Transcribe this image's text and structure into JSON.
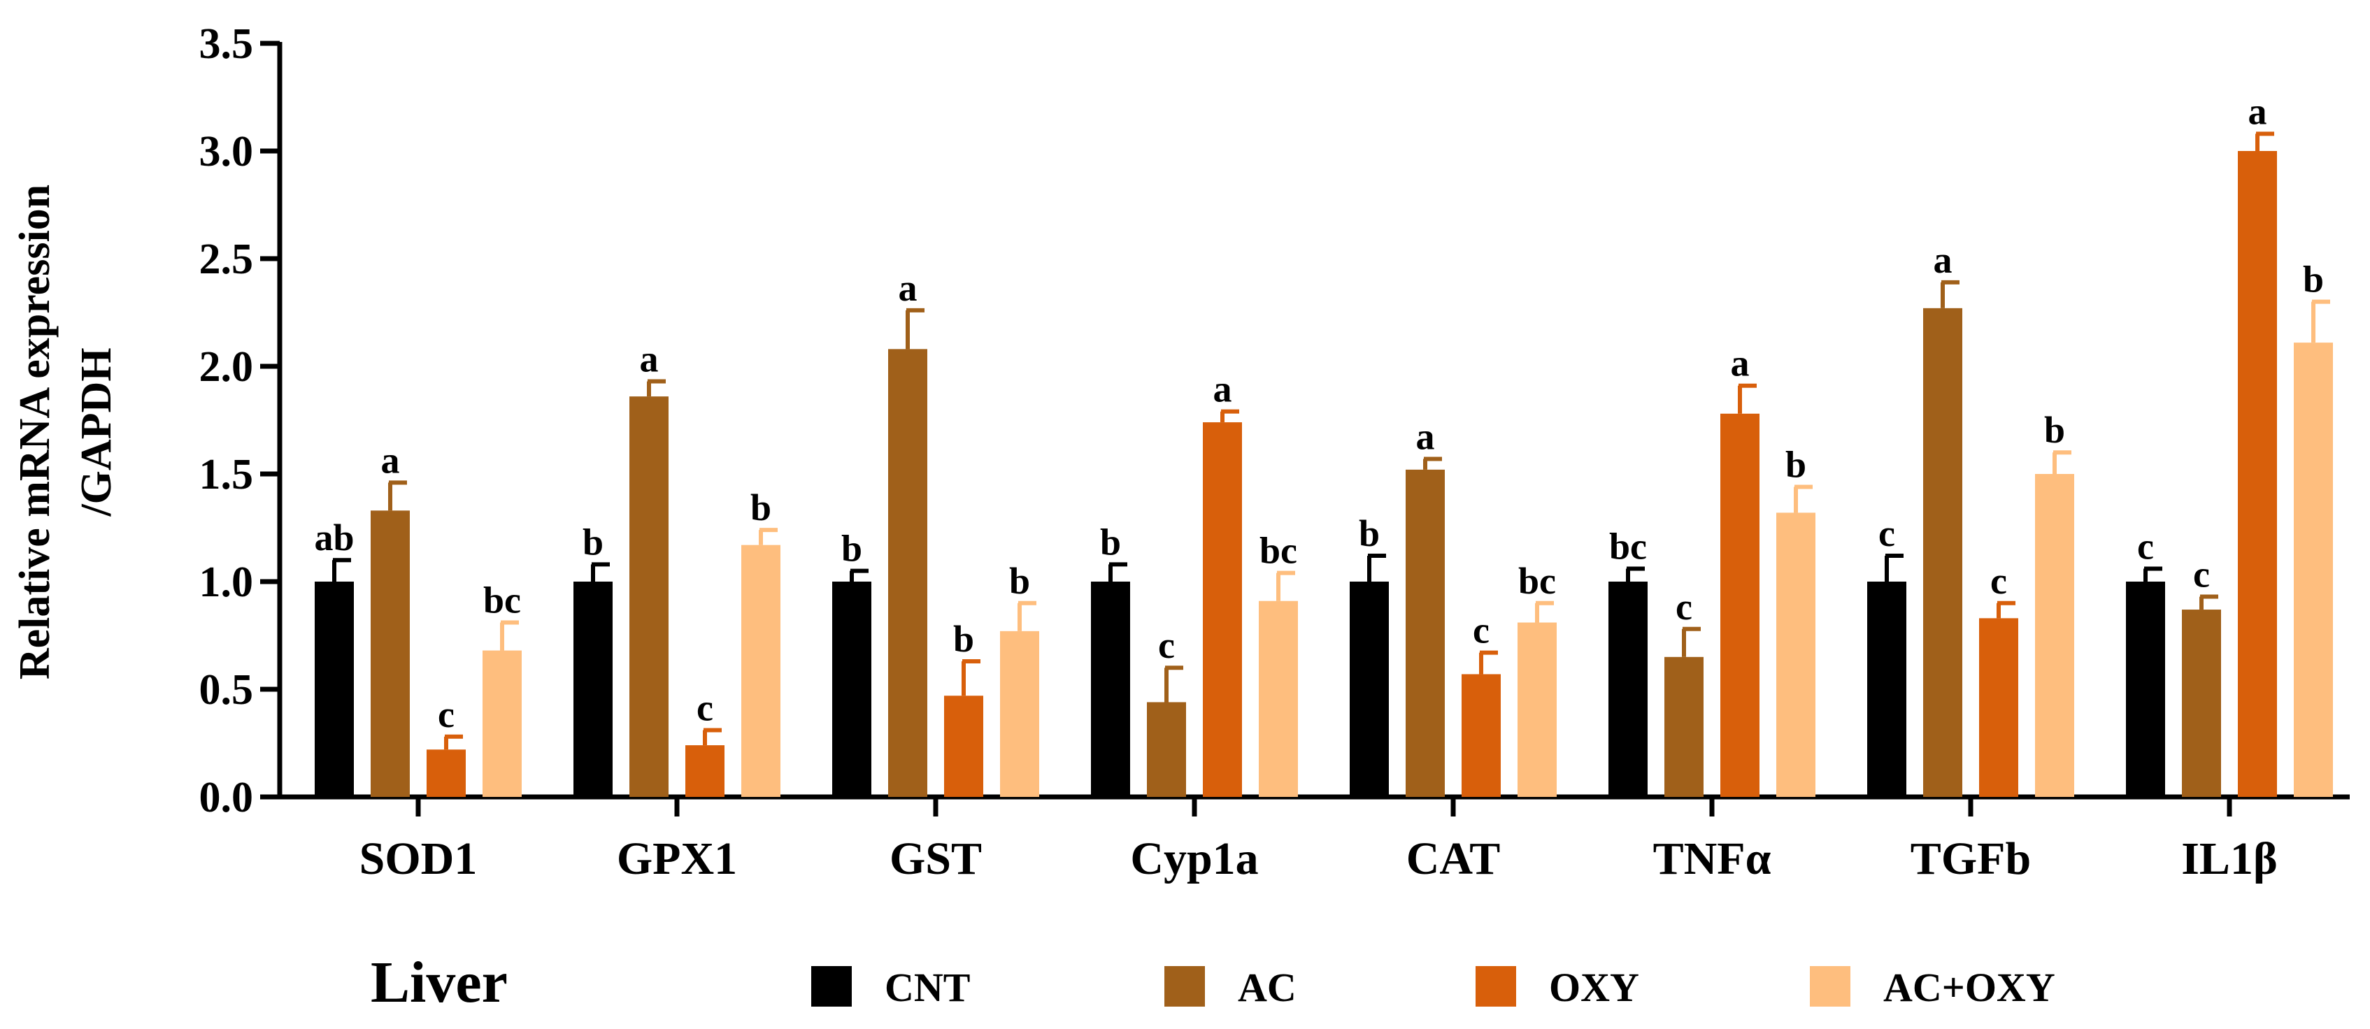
{
  "chart_data": {
    "type": "bar",
    "title": "Liver",
    "ylabel_line1": "Relative mRNA expression",
    "ylabel_line2": "/GAPDH",
    "xlabel": "",
    "ylim": [
      0,
      3.5
    ],
    "yticks": [
      "0.0",
      "0.5",
      "1.0",
      "1.5",
      "2.0",
      "2.5",
      "3.0",
      "3.5"
    ],
    "ytick_values": [
      0,
      0.5,
      1.0,
      1.5,
      2.0,
      2.5,
      3.0,
      3.5
    ],
    "categories": [
      "SOD1",
      "GPX1",
      "GST",
      "Cyp1a",
      "CAT",
      "TNFα",
      "TGFb",
      "IL1β"
    ],
    "legend_position": "bottom",
    "series": [
      {
        "name": "CNT",
        "color": "#000000",
        "values": [
          1.0,
          1.0,
          1.0,
          1.0,
          1.0,
          1.0,
          1.0,
          1.0
        ],
        "errors": [
          0.1,
          0.08,
          0.05,
          0.08,
          0.12,
          0.06,
          0.12,
          0.06
        ],
        "sig": [
          "ab",
          "b",
          "b",
          "b",
          "b",
          "bc",
          "c",
          "c"
        ]
      },
      {
        "name": "AC",
        "color": "#A0601A",
        "values": [
          1.33,
          1.86,
          2.08,
          0.44,
          1.52,
          0.65,
          2.27,
          0.87
        ],
        "errors": [
          0.13,
          0.07,
          0.18,
          0.16,
          0.05,
          0.13,
          0.12,
          0.06
        ],
        "sig": [
          "a",
          "a",
          "a",
          "c",
          "a",
          "c",
          "a",
          "c"
        ]
      },
      {
        "name": "OXY",
        "color": "#D85F0B",
        "values": [
          0.22,
          0.24,
          0.47,
          1.74,
          0.57,
          1.78,
          0.83,
          3.0
        ],
        "errors": [
          0.06,
          0.07,
          0.16,
          0.05,
          0.1,
          0.13,
          0.07,
          0.08
        ],
        "sig": [
          "c",
          "c",
          "b",
          "a",
          "c",
          "a",
          "c",
          "a"
        ]
      },
      {
        "name": "AC+OXY",
        "color": "#FEBE7E",
        "values": [
          0.68,
          1.17,
          0.77,
          0.91,
          0.81,
          1.32,
          1.5,
          2.11
        ],
        "errors": [
          0.13,
          0.07,
          0.13,
          0.13,
          0.09,
          0.12,
          0.1,
          0.19
        ],
        "sig": [
          "bc",
          "b",
          "b",
          "bc",
          "bc",
          "b",
          "b",
          "b"
        ]
      }
    ]
  }
}
